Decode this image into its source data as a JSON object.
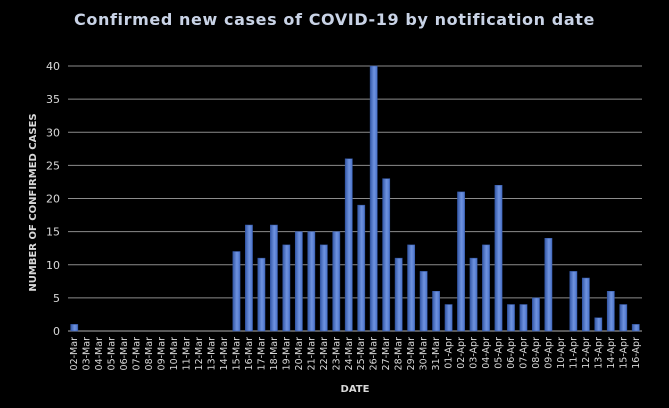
{
  "chart_data": {
    "type": "bar",
    "title": "Confirmed new cases of COVID-19 by notification date",
    "xlabel": "DATE",
    "ylabel": "NUMBER OF CONFIRMED CASES",
    "ylim": [
      0,
      40
    ],
    "yticks": [
      0,
      5,
      10,
      15,
      20,
      25,
      30,
      35,
      40
    ],
    "grid": true,
    "legend": "none",
    "colors": {
      "bar": "#4a72c8",
      "bar_top": "#6f93e0",
      "bar_edge": "#3559a8",
      "grid": "#8c8c8c",
      "axis_text": "#d9d9d9",
      "title": "#c9d3e6",
      "background": "#000000"
    },
    "categories": [
      "02-Mar",
      "03-Mar",
      "04-Mar",
      "05-Mar",
      "06-Mar",
      "07-Mar",
      "08-Mar",
      "09-Mar",
      "10-Mar",
      "11-Mar",
      "12-Mar",
      "13-Mar",
      "14-Mar",
      "15-Mar",
      "16-Mar",
      "17-Mar",
      "18-Mar",
      "19-Mar",
      "20-Mar",
      "21-Mar",
      "22-Mar",
      "23-Mar",
      "24-Mar",
      "25-Mar",
      "26-Mar",
      "27-Mar",
      "28-Mar",
      "29-Mar",
      "30-Mar",
      "31-Mar",
      "01-Apr",
      "02-Apr",
      "03-Apr",
      "04-Apr",
      "05-Apr",
      "06-Apr",
      "07-Apr",
      "08-Apr",
      "09-Apr",
      "10-Apr",
      "11-Apr",
      "12-Apr",
      "13-Apr",
      "14-Apr",
      "15-Apr",
      "16-Apr"
    ],
    "values": [
      1,
      0,
      0,
      0,
      0,
      0,
      0,
      0,
      0,
      0,
      0,
      0,
      0,
      12,
      16,
      11,
      16,
      13,
      15,
      15,
      13,
      15,
      26,
      19,
      40,
      23,
      11,
      13,
      9,
      6,
      4,
      21,
      11,
      13,
      22,
      4,
      4,
      5,
      14,
      0,
      9,
      8,
      2,
      6,
      4,
      1
    ]
  }
}
